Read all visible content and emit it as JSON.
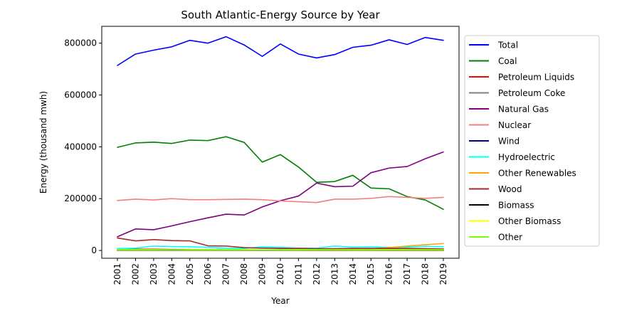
{
  "chart_data": {
    "type": "line",
    "title": "South Atlantic-Energy Source by Year",
    "xlabel": "Year",
    "ylabel": "Energy (thousand mwh)",
    "ylim": [
      -30000,
      865000
    ],
    "yticks": [
      0,
      200000,
      400000,
      600000,
      800000
    ],
    "ytick_labels": [
      "0",
      "200000",
      "400000",
      "600000",
      "800000"
    ],
    "grid": false,
    "legend_position": "outside-right",
    "categories": [
      "2001",
      "2002",
      "2003",
      "2004",
      "2005",
      "2006",
      "2007",
      "2008",
      "2009",
      "2010",
      "2011",
      "2012",
      "2013",
      "2014",
      "2015",
      "2016",
      "2017",
      "2018",
      "2019"
    ],
    "series": [
      {
        "name": "Total",
        "color": "#0000ff",
        "values": [
          714000,
          758000,
          773000,
          786000,
          811000,
          800000,
          825000,
          793000,
          749000,
          797000,
          758000,
          743000,
          756000,
          784000,
          792000,
          813000,
          795000,
          822000,
          811000
        ]
      },
      {
        "name": "Coal",
        "color": "#008000",
        "values": [
          398000,
          415000,
          418000,
          413000,
          426000,
          424000,
          439000,
          417000,
          341000,
          370000,
          322000,
          263000,
          266000,
          290000,
          241000,
          238000,
          208000,
          195000,
          159000
        ]
      },
      {
        "name": "Petroleum Liquids",
        "color": "#ff0000",
        "values": [
          6000,
          5000,
          5000,
          4000,
          4000,
          2000,
          2000,
          1000,
          1000,
          1000,
          1000,
          500,
          500,
          1000,
          1000,
          500,
          500,
          500,
          500
        ]
      },
      {
        "name": "Petroleum Coke",
        "color": "#808080",
        "values": [
          3000,
          3000,
          3000,
          3000,
          3000,
          3000,
          3000,
          2000,
          2000,
          2000,
          2000,
          2000,
          1500,
          1500,
          1500,
          1500,
          1500,
          1500,
          1500
        ]
      },
      {
        "name": "Natural Gas",
        "color": "#800080",
        "values": [
          53000,
          83000,
          80000,
          95000,
          111000,
          126000,
          140000,
          137000,
          168000,
          192000,
          210000,
          260000,
          246000,
          248000,
          300000,
          318000,
          324000,
          354000,
          380000
        ]
      },
      {
        "name": "Nuclear",
        "color": "#f08080",
        "values": [
          193000,
          198000,
          195000,
          200000,
          196000,
          196000,
          197000,
          198000,
          196000,
          191000,
          188000,
          185000,
          198000,
          198000,
          201000,
          208000,
          205000,
          201000,
          205000
        ]
      },
      {
        "name": "Wind",
        "color": "#00008b",
        "values": [
          0,
          0,
          0,
          0,
          0,
          0,
          0,
          0,
          0,
          0,
          0,
          0,
          0,
          0,
          0,
          0,
          0,
          0,
          0
        ]
      },
      {
        "name": "Hydroelectric",
        "color": "#00ffff",
        "values": [
          7000,
          9000,
          17000,
          15000,
          14000,
          12000,
          9000,
          8000,
          14000,
          12000,
          9000,
          9000,
          17000,
          13000,
          14000,
          12000,
          13000,
          16000,
          14000
        ]
      },
      {
        "name": "Other Renewables",
        "color": "#ffa500",
        "values": [
          1000,
          1000,
          1000,
          1000,
          1000,
          1000,
          1000,
          1000,
          1000,
          1000,
          2000,
          2000,
          3000,
          5000,
          7000,
          11000,
          17000,
          22000,
          27000
        ]
      },
      {
        "name": "Wood",
        "color": "#a52a2a",
        "values": [
          48000,
          37000,
          42000,
          38000,
          37000,
          18000,
          17000,
          11000,
          9000,
          8000,
          8000,
          7000,
          7000,
          8000,
          8000,
          8000,
          8000,
          7000,
          6000
        ]
      },
      {
        "name": "Biomass",
        "color": "#000000",
        "values": [
          2000,
          2000,
          2000,
          2000,
          2000,
          2000,
          2000,
          2000,
          2000,
          2000,
          2000,
          2000,
          2000,
          2000,
          2000,
          2000,
          2000,
          2000,
          2000
        ]
      },
      {
        "name": "Other Biomass",
        "color": "#ffff00",
        "values": [
          1000,
          1000,
          1000,
          1000,
          1000,
          1000,
          1000,
          1000,
          1000,
          1000,
          1000,
          1000,
          1000,
          1000,
          1000,
          1000,
          1000,
          1000,
          1000
        ]
      },
      {
        "name": "Other",
        "color": "#7cfc00",
        "values": [
          3000,
          3000,
          3000,
          2000,
          3000,
          3000,
          3000,
          3000,
          2000,
          3000,
          3000,
          3000,
          3000,
          3000,
          3000,
          3000,
          3000,
          3000,
          3000
        ]
      }
    ]
  }
}
